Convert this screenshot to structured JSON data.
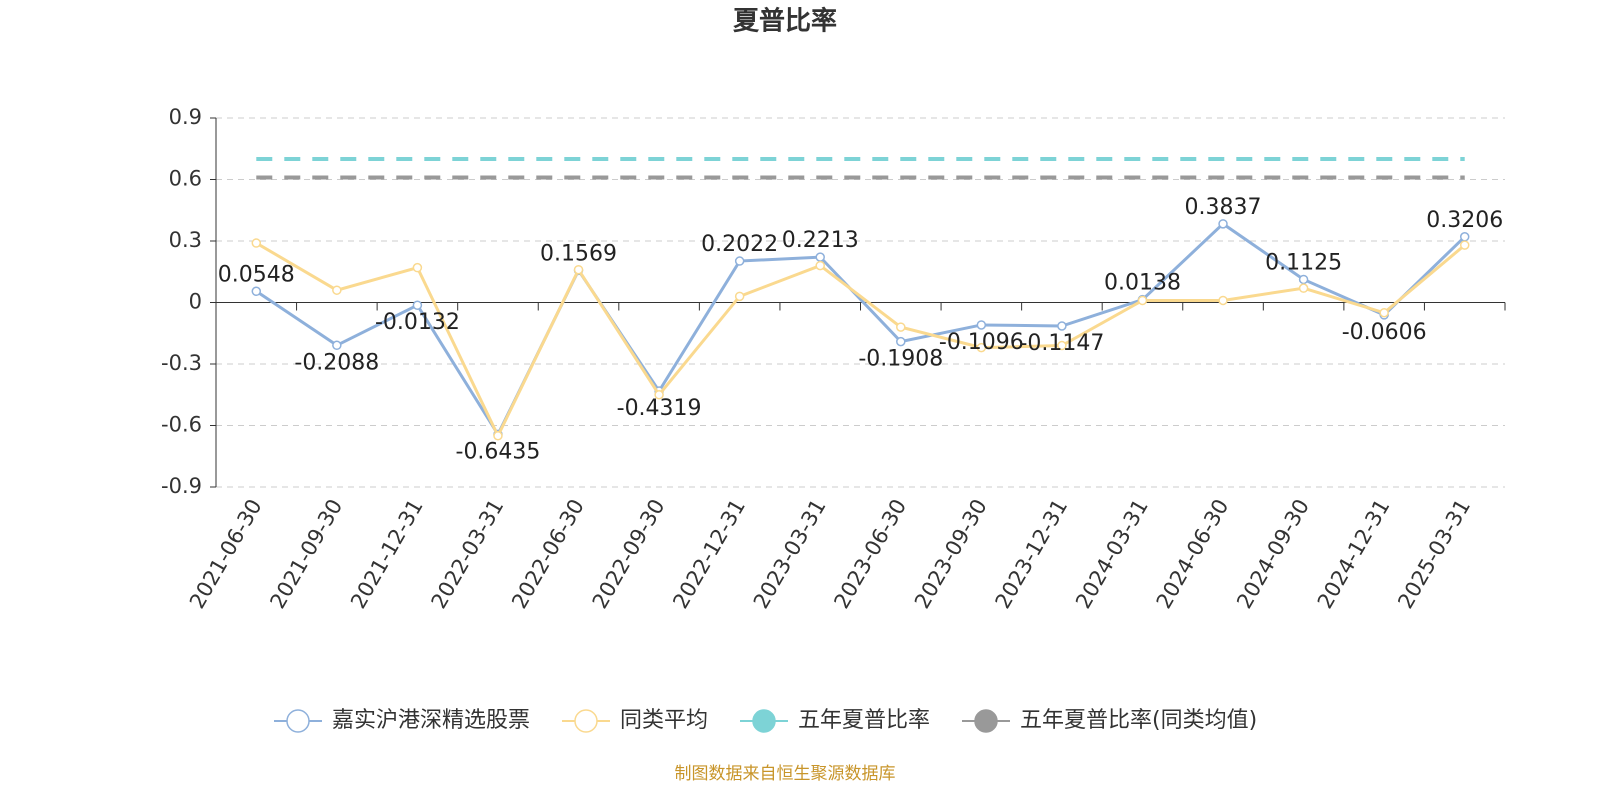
{
  "chart_data": {
    "type": "line",
    "title": "夏普比率",
    "categories": [
      "2021-06-30",
      "2021-09-30",
      "2021-12-31",
      "2022-03-31",
      "2022-06-30",
      "2022-09-30",
      "2022-12-31",
      "2023-03-31",
      "2023-06-30",
      "2023-09-30",
      "2023-12-31",
      "2024-03-31",
      "2024-06-30",
      "2024-09-30",
      "2024-12-31",
      "2025-03-31"
    ],
    "series": [
      {
        "name": "嘉实沪港深精选股票",
        "color": "#8eb0db",
        "labels": true,
        "values": [
          0.0548,
          -0.2088,
          -0.0132,
          -0.6435,
          0.1569,
          -0.4319,
          0.2022,
          0.2213,
          -0.1908,
          -0.1096,
          -0.1147,
          0.0138,
          0.3837,
          0.1125,
          -0.0606,
          0.3206
        ]
      },
      {
        "name": "同类平均",
        "color": "#fad98f",
        "values": [
          0.29,
          0.06,
          0.17,
          -0.65,
          0.16,
          -0.45,
          0.03,
          0.18,
          -0.12,
          -0.22,
          -0.21,
          0.01,
          0.01,
          0.07,
          -0.05,
          0.28
        ]
      },
      {
        "name": "五年夏普比率",
        "color": "#7dd3d6",
        "dashed": true,
        "values": [
          0.7,
          0.7,
          0.7,
          0.7,
          0.7,
          0.7,
          0.7,
          0.7,
          0.7,
          0.7,
          0.7,
          0.7,
          0.7,
          0.7,
          0.7,
          0.7
        ]
      },
      {
        "name": "五年夏普比率(同类均值)",
        "color": "#999999",
        "dashed": true,
        "values": [
          0.61,
          0.61,
          0.61,
          0.61,
          0.61,
          0.61,
          0.61,
          0.61,
          0.61,
          0.61,
          0.61,
          0.61,
          0.61,
          0.61,
          0.61,
          0.61
        ]
      }
    ],
    "ylim": [
      -0.9,
      0.9
    ],
    "yticks": [
      -0.9,
      -0.6,
      -0.3,
      0,
      0.3,
      0.6,
      0.9
    ],
    "grid": true,
    "source": "制图数据来自恒生聚源数据库"
  }
}
